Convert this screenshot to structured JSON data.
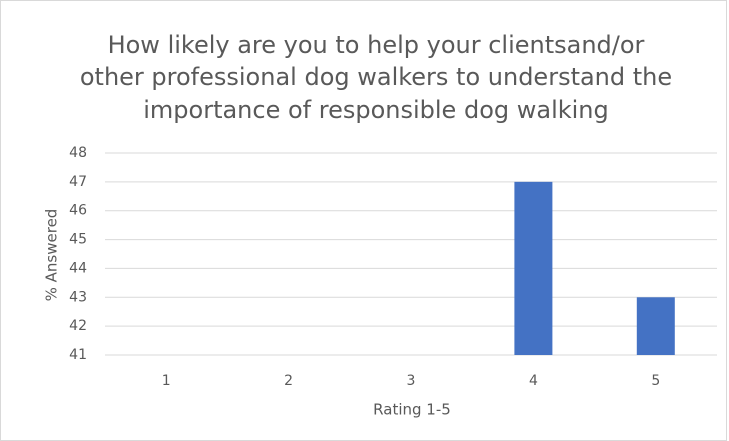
{
  "chart_data": {
    "type": "bar",
    "title": [
      "How likely are you to help your clientsand/or",
      "other professional dog walkers to understand the",
      "importance of responsible dog walking"
    ],
    "xlabel": "Rating 1-5",
    "ylabel": "% Answered",
    "categories": [
      "1",
      "2",
      "3",
      "4",
      "5"
    ],
    "values": [
      null,
      null,
      null,
      47,
      43
    ],
    "color": "#4472c4",
    "ylim": [
      41,
      48
    ],
    "yticks": [
      41,
      42,
      43,
      44,
      45,
      46,
      47,
      48
    ],
    "grid": true
  }
}
